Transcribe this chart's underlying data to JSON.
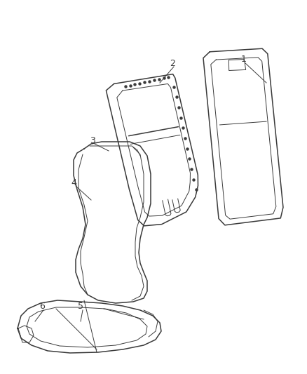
{
  "background_color": "#ffffff",
  "line_color": "#3a3a3a",
  "label_color": "#3a3a3a",
  "label_fs": 9,
  "lw_main": 1.1,
  "lw_thin": 0.7,
  "lw_dot": 0.6
}
